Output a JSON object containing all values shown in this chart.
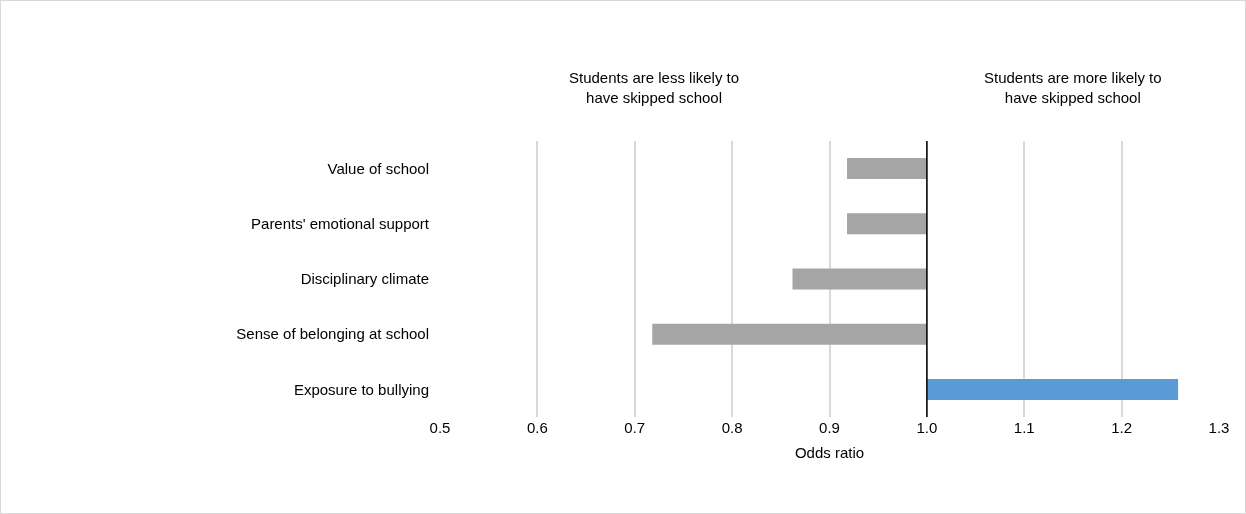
{
  "chart_data": {
    "type": "bar",
    "orientation": "horizontal",
    "categories": [
      "Value of school",
      "Parents' emotional support",
      "Disciplinary climate",
      "Sense of belonging at school",
      "Exposure to bullying"
    ],
    "values": [
      -0.082,
      -0.082,
      -0.138,
      -0.282,
      0.258
    ],
    "base": [
      1,
      1,
      1,
      1,
      1
    ],
    "colors": [
      "#a5a5a5",
      "#a5a5a5",
      "#a5a5a5",
      "#a5a5a5",
      "#5b9bd5"
    ],
    "xlabel": "Odds ratio",
    "xlim": [
      0.5,
      1.3
    ],
    "xticks": [
      {
        "value": 0.5,
        "label": "0.5"
      },
      {
        "value": 0.6,
        "label": "0.6"
      },
      {
        "value": 0.7,
        "label": "0.7"
      },
      {
        "value": 0.8,
        "label": "0.8"
      },
      {
        "value": 0.9,
        "label": "0.9"
      },
      {
        "value": 1,
        "label": "1.0"
      },
      {
        "value": 1.1,
        "label": "1.1"
      },
      {
        "value": 1.2,
        "label": "1.2"
      },
      {
        "value": 1.3,
        "label": "1.3"
      }
    ],
    "grid": "x",
    "ref_lines": [
      {
        "axis": "x",
        "value": 1,
        "color": "#000000"
      }
    ],
    "annotations": [
      "Students are less likely to have skipped school",
      "Students are more likely to have skipped school"
    ]
  }
}
